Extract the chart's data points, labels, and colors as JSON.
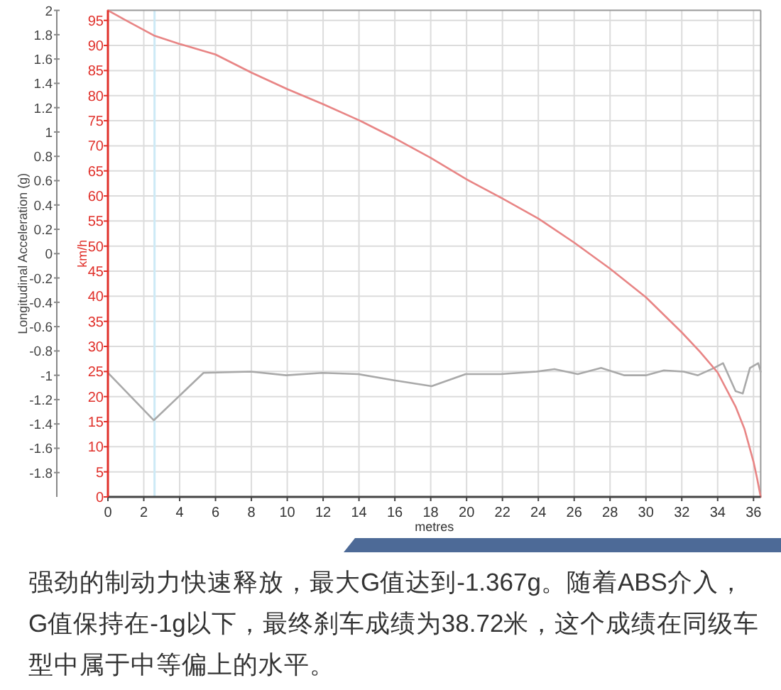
{
  "chart_data": {
    "type": "line",
    "xlabel": "metres",
    "ylabel": "Longitudinal Acceleration (g)",
    "y2label": "km/h",
    "xlim": [
      0,
      36.4
    ],
    "xticks": [
      0,
      2,
      4,
      6,
      8,
      10,
      12,
      14,
      16,
      18,
      20,
      22,
      24,
      26,
      28,
      30,
      32,
      34,
      36
    ],
    "ylim": [
      -2,
      2
    ],
    "yticks": [
      -1.8,
      -1.6,
      -1.4,
      -1.2,
      -1,
      -0.8,
      -0.6,
      -0.4,
      -0.2,
      0,
      0.2,
      0.4,
      0.6,
      0.8,
      1,
      1.2,
      1.4,
      1.6,
      1.8,
      2
    ],
    "y2lim": [
      0,
      97
    ],
    "y2ticks": [
      0,
      5,
      10,
      15,
      20,
      25,
      30,
      35,
      40,
      45,
      50,
      55,
      60,
      65,
      70,
      75,
      80,
      85,
      90,
      95
    ],
    "grid": true,
    "series": [
      {
        "color": "#a9a9a9",
        "x": [
          0,
          2.56,
          5.33,
          7.97,
          9.94,
          11.95,
          13.95,
          15.9,
          18.05,
          19.95,
          21.9,
          23.9,
          24.9,
          26.2,
          27.5,
          28.8,
          30.0,
          31.0,
          32.1,
          32.9,
          33.8,
          34.3,
          35.0,
          35.4,
          35.8,
          36.26,
          36.4
        ],
        "values": [
          -0.98,
          -1.37,
          -0.98,
          -0.97,
          -1.0,
          -0.98,
          -0.99,
          -1.04,
          -1.09,
          -0.99,
          -0.99,
          -0.97,
          -0.95,
          -0.99,
          -0.94,
          -1.0,
          -1.0,
          -0.96,
          -0.97,
          -1.0,
          -0.94,
          -0.9,
          -1.13,
          -1.15,
          -0.94,
          -0.9,
          -0.97
        ]
      },
      {
        "color": "#e88585",
        "axis": "y2",
        "x": [
          0,
          1,
          2.56,
          4,
          6,
          8,
          10,
          12,
          14,
          16,
          18,
          20,
          22,
          24,
          26,
          28,
          30,
          32,
          33,
          34,
          35,
          35.5,
          36,
          36.2,
          36.4
        ],
        "values": [
          97,
          95,
          92,
          90.3,
          88.2,
          84.6,
          81.3,
          78.3,
          75.1,
          71.5,
          67.6,
          63.3,
          59.5,
          55.5,
          50.7,
          45.5,
          39.8,
          32.8,
          29,
          24.8,
          18,
          13.5,
          7,
          3.7,
          0
        ]
      }
    ],
    "ref_lines": [
      {
        "axis": "x",
        "value": 2.6,
        "color": "#cdeaf6"
      }
    ],
    "annotations": [
      "强劲的制动力快速释放，最大G值达到-1.367g。随着ABS介入，G值保持在-1g以下，最终刹车成绩为38.72米，这个成绩在同级车型中属于中等偏上的水平。"
    ]
  }
}
